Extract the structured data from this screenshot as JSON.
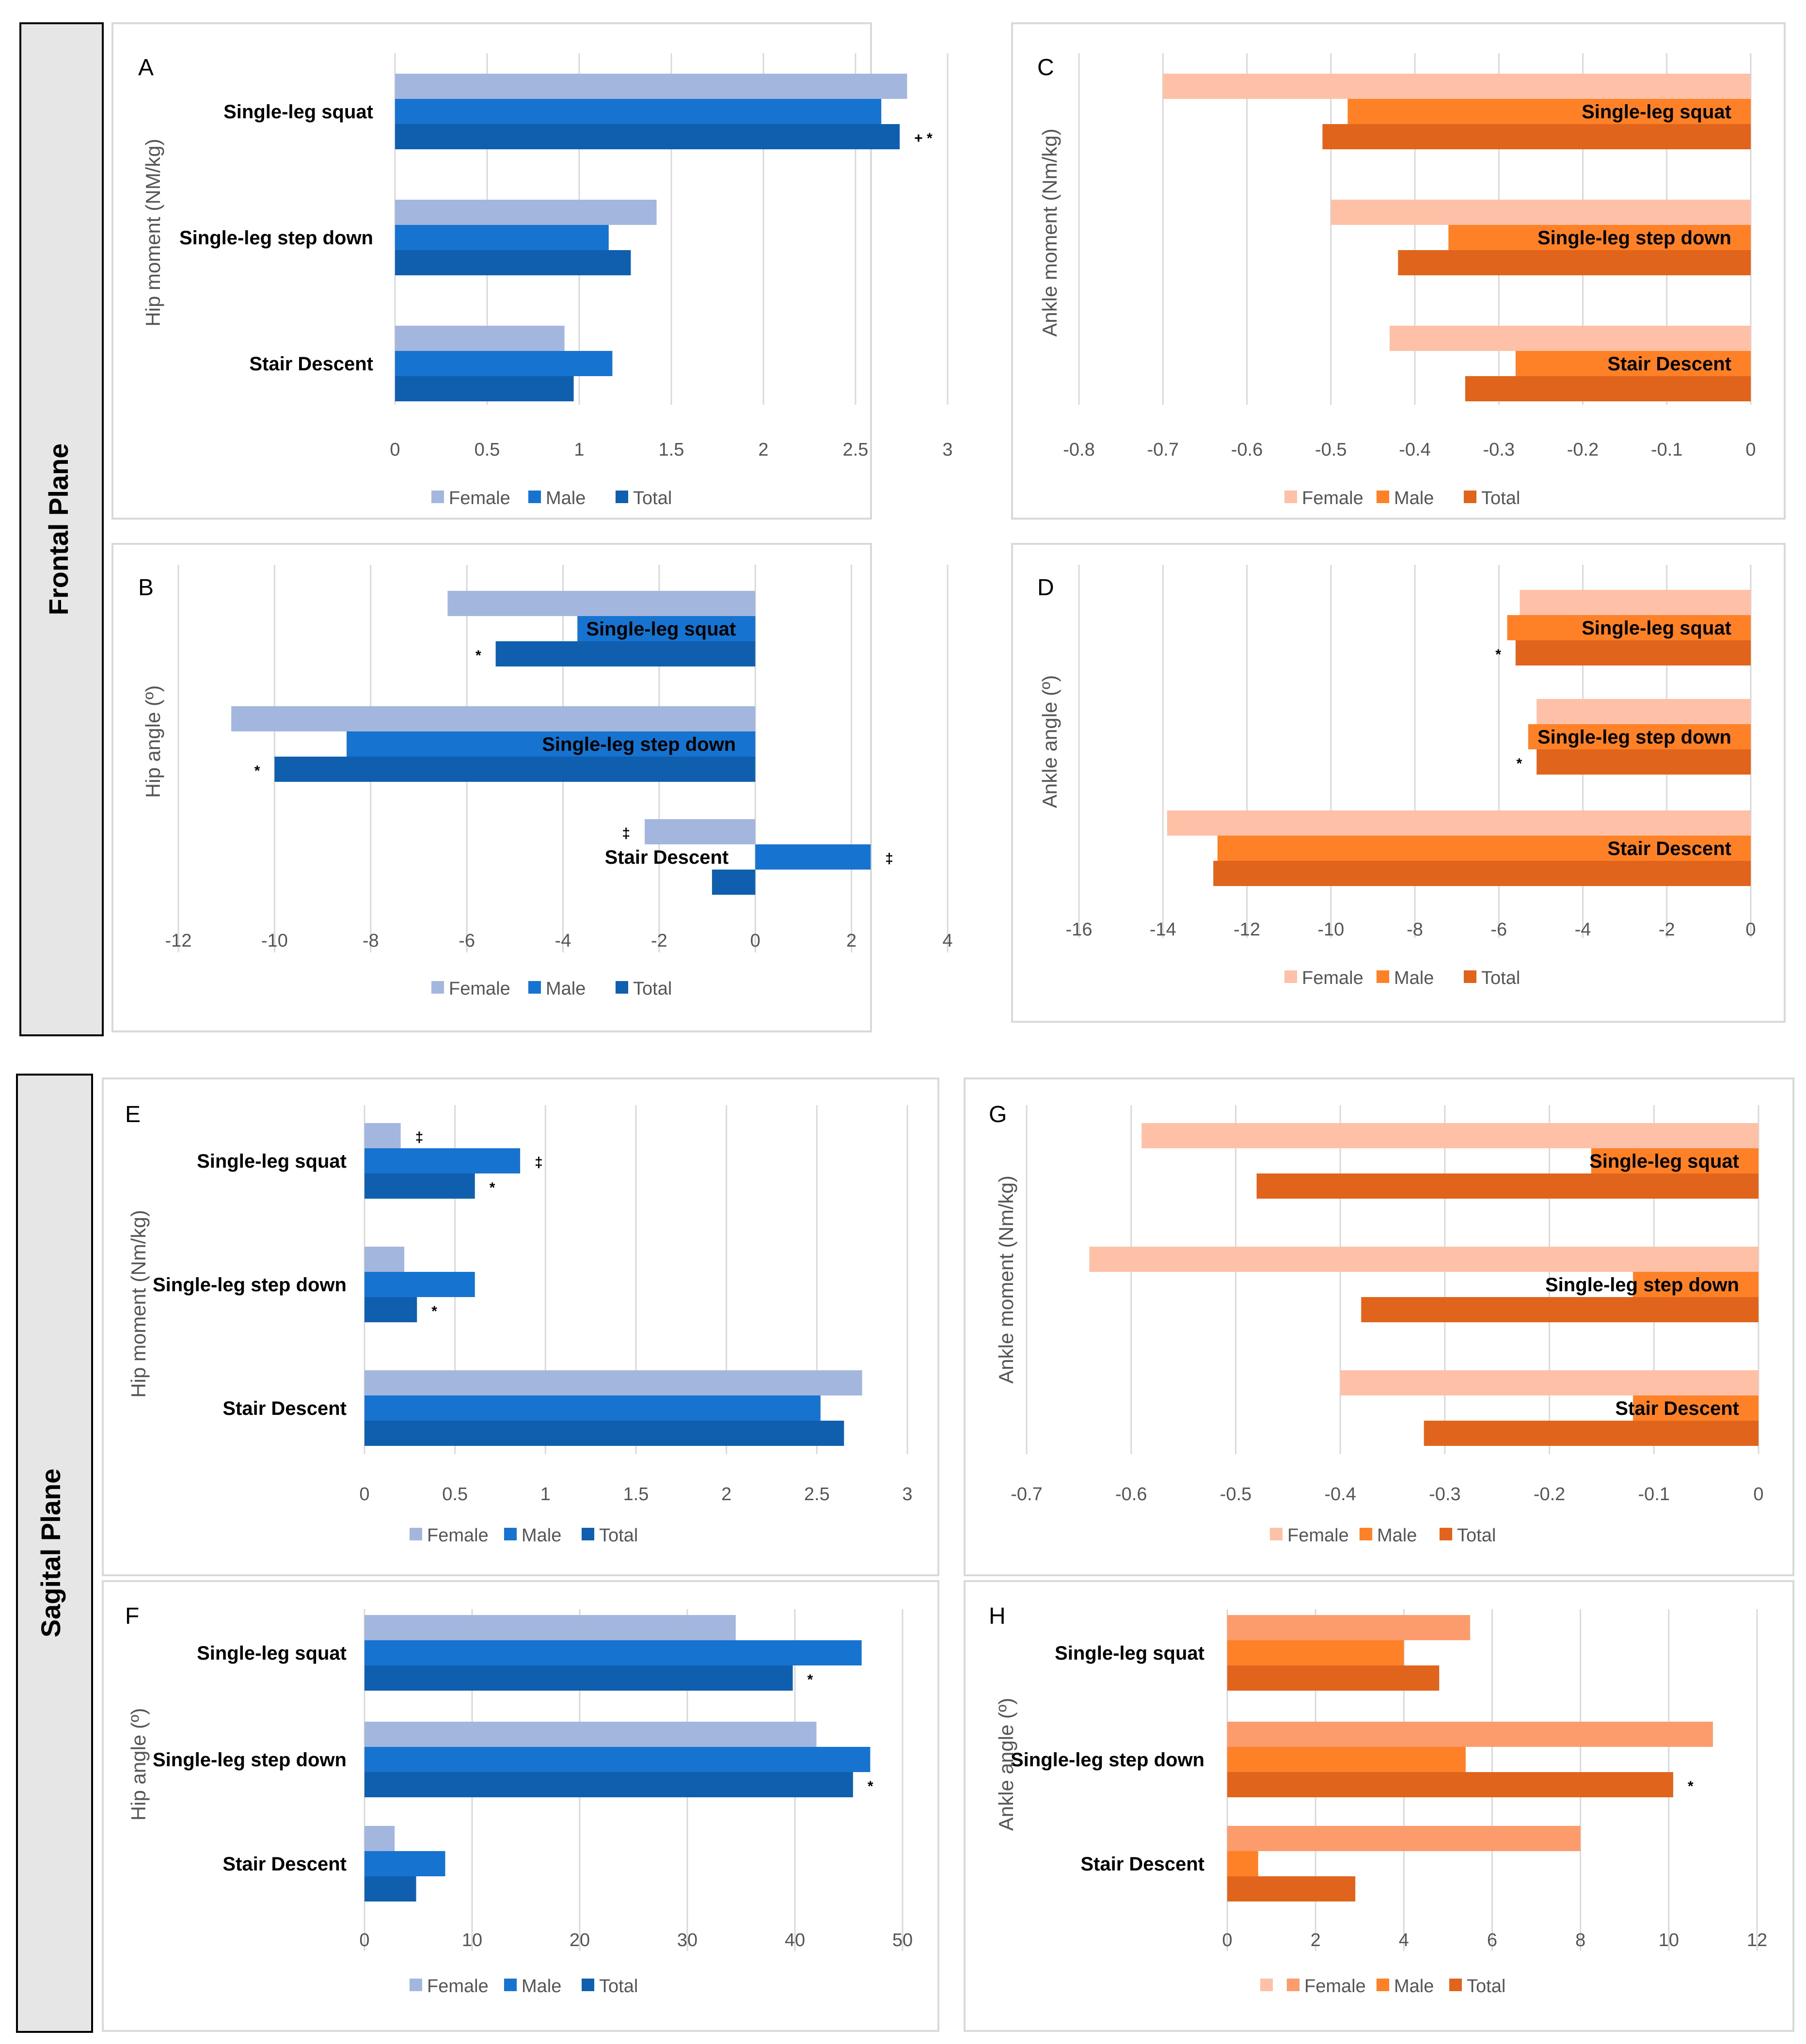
{
  "sections": [
    {
      "label": "Frontal Plane"
    },
    {
      "label": "Sagital Plane"
    }
  ],
  "colors": {
    "female_blue": "#a3b6de",
    "male_blue": "#1673cf",
    "total_blue": "#0f5fae",
    "female_orange": "#ffc0a8",
    "male_orange": "#fe8128",
    "total_orange": "#e0641c",
    "female_orange_h": "#fc9c6c"
  },
  "chart_data": [
    {
      "type": "bar",
      "orientation": "horizontal",
      "letter": "A",
      "ylabel": "Hip moment (NM/kg)",
      "categories": [
        "Single-leg squat",
        "Single-leg step down",
        "Stair Descent"
      ],
      "series": [
        {
          "name": "Female",
          "values": [
            2.78,
            1.42,
            0.92
          ]
        },
        {
          "name": "Male",
          "values": [
            2.64,
            1.16,
            1.18
          ]
        },
        {
          "name": "Total",
          "values": [
            2.74,
            1.28,
            0.97
          ]
        }
      ],
      "xlim": [
        0,
        3
      ],
      "xticks": [
        "0",
        "0.5",
        "1",
        "1.5",
        "2",
        "2.5",
        "3"
      ],
      "annotations": [
        {
          "category": 0,
          "series": 2,
          "text": "+   *"
        }
      ],
      "legend": [
        "Female",
        "Male",
        "Total"
      ],
      "legend_position": "bottom"
    },
    {
      "type": "bar",
      "orientation": "horizontal",
      "letter": "B",
      "ylabel": "Hip angle  (º)",
      "categories": [
        "Single-leg squat",
        "Single-leg step down",
        "Stair Descent"
      ],
      "series": [
        {
          "name": "Female",
          "values": [
            -6.4,
            -10.9,
            -2.3
          ]
        },
        {
          "name": "Male",
          "values": [
            -3.7,
            -8.5,
            2.4
          ]
        },
        {
          "name": "Total",
          "values": [
            -5.4,
            -10.0,
            -0.9
          ]
        }
      ],
      "xlim": [
        -12,
        4
      ],
      "xticks": [
        "-12",
        "-10",
        "-8",
        "-6",
        "-4",
        "-2",
        "0",
        "2",
        "4"
      ],
      "annotations": [
        {
          "category": 0,
          "series": 2,
          "text": "*"
        },
        {
          "category": 1,
          "series": 2,
          "text": "*"
        },
        {
          "category": 2,
          "series": 0,
          "text": "‡"
        },
        {
          "category": 2,
          "series": 1,
          "text": "‡"
        }
      ],
      "legend": [
        "Female",
        "Male",
        "Total"
      ],
      "legend_position": "bottom"
    },
    {
      "type": "bar",
      "orientation": "horizontal",
      "letter": "C",
      "ylabel": "Ankle moment (Nm/kg)",
      "categories": [
        "Single-leg squat",
        "Single-leg step down",
        "Stair Descent"
      ],
      "series": [
        {
          "name": "Female",
          "values": [
            -0.7,
            -0.5,
            -0.43
          ]
        },
        {
          "name": "Male",
          "values": [
            -0.48,
            -0.36,
            -0.28
          ]
        },
        {
          "name": "Total",
          "values": [
            -0.51,
            -0.42,
            -0.34
          ]
        }
      ],
      "xlim": [
        -0.8,
        0
      ],
      "xticks": [
        "-0.8",
        "-0.7",
        "-0.6",
        "-0.5",
        "-0.4",
        "-0.3",
        "-0.2",
        "-0.1",
        "0"
      ],
      "annotations": [],
      "legend": [
        "Female",
        "Male",
        "Total"
      ],
      "legend_position": "bottom"
    },
    {
      "type": "bar",
      "orientation": "horizontal",
      "letter": "D",
      "ylabel": "Ankle angle (º)",
      "categories": [
        "Single-leg squat",
        "Single-leg step down",
        "Stair Descent"
      ],
      "series": [
        {
          "name": "Female",
          "values": [
            -5.5,
            -5.1,
            -13.9
          ]
        },
        {
          "name": "Male",
          "values": [
            -5.8,
            -5.3,
            -12.7
          ]
        },
        {
          "name": "Total",
          "values": [
            -5.6,
            -5.1,
            -12.8
          ]
        }
      ],
      "xlim": [
        -16,
        0
      ],
      "xticks": [
        "-16",
        "-14",
        "-12",
        "-10",
        "-8",
        "-6",
        "-4",
        "-2",
        "0"
      ],
      "annotations": [
        {
          "category": 0,
          "series": 2,
          "text": "*"
        },
        {
          "category": 1,
          "series": 2,
          "text": "*"
        }
      ],
      "legend": [
        "Female",
        "Male",
        "Total"
      ],
      "legend_position": "bottom"
    },
    {
      "type": "bar",
      "orientation": "horizontal",
      "letter": "E",
      "ylabel": "Hip moment (Nm/kg)",
      "categories": [
        "Single-leg squat",
        "Single-leg step down",
        "Stair Descent"
      ],
      "series": [
        {
          "name": "Female",
          "values": [
            0.2,
            0.22,
            2.75
          ]
        },
        {
          "name": "Male",
          "values": [
            0.86,
            0.61,
            2.52
          ]
        },
        {
          "name": "Total",
          "values": [
            0.61,
            0.29,
            2.65
          ]
        }
      ],
      "xlim": [
        0,
        3
      ],
      "xticks": [
        "0",
        "0.5",
        "1",
        "1.5",
        "2",
        "2.5",
        "3"
      ],
      "annotations": [
        {
          "category": 0,
          "series": 0,
          "text": "‡"
        },
        {
          "category": 0,
          "series": 1,
          "text": "‡"
        },
        {
          "category": 0,
          "series": 2,
          "text": "*"
        },
        {
          "category": 1,
          "series": 2,
          "text": "*"
        }
      ],
      "legend": [
        "Female",
        "Male",
        "Total"
      ],
      "legend_position": "bottom"
    },
    {
      "type": "bar",
      "orientation": "horizontal",
      "letter": "F",
      "ylabel": "Hip angle (º)",
      "categories": [
        "Single-leg squat",
        "Single-leg step down",
        "Stair Descent"
      ],
      "series": [
        {
          "name": "Female",
          "values": [
            34.5,
            42.0,
            2.8
          ]
        },
        {
          "name": "Male",
          "values": [
            46.2,
            47.0,
            7.5
          ]
        },
        {
          "name": "Total",
          "values": [
            39.8,
            45.4,
            4.8
          ]
        }
      ],
      "xlim": [
        0,
        50
      ],
      "xticks": [
        "0",
        "10",
        "20",
        "30",
        "40",
        "50"
      ],
      "annotations": [
        {
          "category": 0,
          "series": 2,
          "text": "*"
        },
        {
          "category": 1,
          "series": 2,
          "text": "*"
        }
      ],
      "legend": [
        "Female",
        "Male",
        "Total"
      ],
      "legend_position": "bottom"
    },
    {
      "type": "bar",
      "orientation": "horizontal",
      "letter": "G",
      "ylabel": "Ankle moment (Nm/kg)",
      "categories": [
        "Single-leg squat",
        "Single-leg step down",
        "Stair Descent"
      ],
      "series": [
        {
          "name": "Female",
          "values": [
            -0.59,
            -0.64,
            -0.4
          ]
        },
        {
          "name": "Male",
          "values": [
            -0.16,
            -0.12,
            -0.12
          ]
        },
        {
          "name": "Total",
          "values": [
            -0.48,
            -0.38,
            -0.32
          ]
        }
      ],
      "xlim": [
        -0.7,
        0
      ],
      "xticks": [
        "-0.7",
        "-0.6",
        "-0.5",
        "-0.4",
        "-0.3",
        "-0.2",
        "-0.1",
        "0"
      ],
      "annotations": [],
      "legend": [
        "Female",
        "Male",
        "Total"
      ],
      "legend_position": "bottom"
    },
    {
      "type": "bar",
      "orientation": "horizontal",
      "letter": "H",
      "ylabel": "Ankle angle (º)",
      "categories": [
        "Single-leg squat",
        "Single-leg step down",
        "Stair Descent"
      ],
      "series": [
        {
          "name": "Female",
          "values": [
            5.5,
            11.0,
            8.0
          ]
        },
        {
          "name": "Male",
          "values": [
            4.0,
            5.4,
            0.7
          ]
        },
        {
          "name": "Total",
          "values": [
            4.8,
            10.1,
            2.9
          ]
        }
      ],
      "xlim": [
        0,
        12
      ],
      "xticks": [
        "0",
        "2",
        "4",
        "6",
        "8",
        "10",
        "12"
      ],
      "annotations": [
        {
          "category": 1,
          "series": 2,
          "text": "*"
        }
      ],
      "legend": [
        "",
        "Female",
        "Male",
        "Total"
      ],
      "legend_position": "bottom"
    }
  ]
}
